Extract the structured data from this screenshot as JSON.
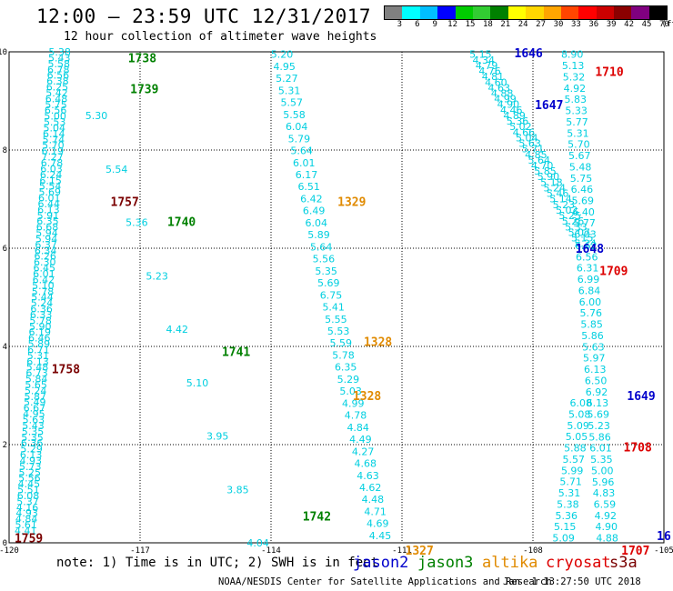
{
  "header": {
    "title": "12:00 — 23:59 UTC 12/31/2017",
    "subtitle": "12 hour collection of altimeter wave heights"
  },
  "colorbar": {
    "unit": "(ft)",
    "ticks": [
      "3",
      "6",
      "9",
      "12",
      "15",
      "18",
      "21",
      "24",
      "27",
      "30",
      "33",
      "36",
      "39",
      "42",
      "45",
      "70"
    ],
    "colors": [
      "#808080",
      "#00ffff",
      "#00bfff",
      "#0000ff",
      "#00cc00",
      "#32cd32",
      "#008000",
      "#ffff00",
      "#ffd700",
      "#ffa500",
      "#ff4500",
      "#ff0000",
      "#cc0000",
      "#8b0000",
      "#800080",
      "#000000"
    ]
  },
  "chart_data": {
    "type": "scatter",
    "xlim": [
      -120,
      -105
    ],
    "ylim": [
      0,
      10
    ],
    "x_ticks": [
      "-120",
      "-117",
      "-114",
      "-111",
      "-108",
      "-105"
    ],
    "y_ticks": [
      "0",
      "2",
      "4",
      "6",
      "8",
      "10"
    ],
    "grid": true,
    "tracks": [
      {
        "satellite": "jason3",
        "color": "#00cfe0",
        "x0": -118.84,
        "y0": 10,
        "x1": -119.62,
        "y1": 0.25,
        "values": [
          "5.38",
          "5.43",
          "5.58",
          "6.78",
          "6.56",
          "6.38",
          "6.25",
          "5.42",
          "6.48",
          "5.75",
          "6.56",
          "5.00",
          "5.53",
          "5.04",
          "6.14",
          "5.74",
          "5.70",
          "6.19",
          "7.27",
          "6.78",
          "6.03",
          "6.24",
          "6.15",
          "5.54",
          "5.69",
          "6.01",
          "6.44",
          "6.13",
          "5.91",
          "6.35",
          "6.68",
          "5.94",
          "5.94",
          "6.37",
          "6.34",
          "6.26",
          "6.30",
          "6.45",
          "6.01",
          "6.42",
          "5.10",
          "5.78",
          "5.44",
          "5.24",
          "6.36",
          "6.33",
          "5.78",
          "5.90",
          "6.19",
          "6.46",
          "5.89",
          "6.71",
          "5.31",
          "6.13",
          "5.48",
          "6.73",
          "5.84",
          "5.65",
          "5.24",
          "5.87",
          "5.49",
          "6.67",
          "4.95",
          "5.63",
          "5.43",
          "5.35",
          "5.35",
          "6.36",
          "5.29",
          "6.13",
          "4.93",
          "5.73",
          "5.25",
          "5.56",
          "4.45",
          "5.51",
          "6.08",
          "5.37",
          "4.16",
          "4.93",
          "4.84",
          "5.61",
          "4.41"
        ]
      },
      {
        "satellite": "jason3",
        "color": "#00cfe0",
        "x0": -118.0,
        "y0": 8.7,
        "x1": -114.3,
        "y1": 0.0,
        "values": [
          "5.30",
          "5.54",
          "5.36",
          "5.23",
          "4.42",
          "5.10",
          "3.95",
          "3.85",
          "4.04"
        ]
      },
      {
        "satellite": "altika",
        "color": "#00cfe0",
        "x0": -113.75,
        "y0": 9.95,
        "x1": -111.5,
        "y1": 0.15,
        "values": [
          "5.20",
          "4.95",
          "5.27",
          "5.31",
          "5.57",
          "5.58",
          "6.04",
          "5.79",
          "5.64",
          "6.01",
          "6.17",
          "6.51",
          "6.42",
          "6.49",
          "6.04",
          "5.89",
          "5.64",
          "5.56",
          "5.35",
          "5.69",
          "6.75",
          "5.41",
          "5.55",
          "5.53",
          "5.59",
          "5.78",
          "6.35",
          "5.29",
          "5.03",
          "4.99",
          "4.78",
          "4.84",
          "4.49",
          "4.27",
          "4.68",
          "4.63",
          "4.62",
          "4.48",
          "4.71",
          "4.69",
          "4.45"
        ]
      },
      {
        "satellite": "jason2",
        "color": "#00cfe0",
        "x0": -109.2,
        "y0": 9.95,
        "x1": -106.8,
        "y1": 6.1,
        "values": [
          "5.15",
          "4.34",
          "4.79",
          "4.76",
          "4.81",
          "4.60",
          "4.63",
          "4.88",
          "4.99",
          "4.90",
          "4.46",
          "4.89",
          "5.36",
          "5.02",
          "4.66",
          "5.04",
          "5.63",
          "5.71",
          "4.85",
          "5.64",
          "4.70",
          "5.85",
          "5.90",
          "5.18",
          "5.24",
          "5.46",
          "5.14",
          "5.23",
          "5.02",
          "5.25",
          "5.26",
          "5.33",
          "5.07",
          "5.15",
          "5.24"
        ]
      },
      {
        "satellite": "cryosat",
        "color": "#00cfe0",
        "x0": -107.1,
        "y0": 9.95,
        "x1": -106.3,
        "y1": 0.1,
        "values": [
          "8.90",
          "5.13",
          "5.32",
          "4.92",
          "5.83",
          "5.33",
          "5.77",
          "5.31",
          "5.70",
          "5.67",
          "5.48",
          "5.75",
          "6.46",
          "5.69",
          "6.40",
          "5.77",
          "6.03",
          "6.62",
          "6.56",
          "6.31",
          "6.99",
          "6.84",
          "6.00",
          "5.76",
          "5.85",
          "5.86",
          "5.63",
          "5.97",
          "6.13",
          "6.50",
          "6.92",
          "6.13",
          "5.69",
          "5.23",
          "5.86",
          "6.01",
          "5.35",
          "5.00",
          "5.96",
          "4.83",
          "6.59",
          "4.92",
          "4.90",
          "4.88"
        ]
      },
      {
        "satellite": "cryosat",
        "color": "#00cfe0",
        "x0": -106.9,
        "y0": 2.85,
        "x1": -107.3,
        "y1": 0.1,
        "values": [
          "6.08",
          "5.08",
          "5.09",
          "5.05",
          "5.88",
          "5.57",
          "5.99",
          "5.71",
          "5.31",
          "5.38",
          "5.36",
          "5.15",
          "5.09"
        ]
      }
    ],
    "time_labels": [
      {
        "text": "1738",
        "color": "#008000",
        "x": -116.95,
        "y": 9.88
      },
      {
        "text": "1739",
        "color": "#008000",
        "x": -116.9,
        "y": 9.25
      },
      {
        "text": "1757",
        "color": "#7a0000",
        "x": -117.35,
        "y": 6.95
      },
      {
        "text": "1740",
        "color": "#008000",
        "x": -116.05,
        "y": 6.55
      },
      {
        "text": "1758",
        "color": "#7a0000",
        "x": -118.7,
        "y": 3.55
      },
      {
        "text": "1741",
        "color": "#008000",
        "x": -114.8,
        "y": 3.9
      },
      {
        "text": "1742",
        "color": "#008000",
        "x": -112.95,
        "y": 0.55
      },
      {
        "text": "1759",
        "color": "#7a0000",
        "x": -119.55,
        "y": 0.1
      },
      {
        "text": "1329",
        "color": "#e08a00",
        "x": -112.15,
        "y": 6.95
      },
      {
        "text": "1328",
        "color": "#e08a00",
        "x": -111.55,
        "y": 4.1
      },
      {
        "text": "1328",
        "color": "#e08a00",
        "x": -111.8,
        "y": 3.0
      },
      {
        "text": "1327",
        "color": "#e08a00",
        "x": -110.6,
        "y": -0.15
      },
      {
        "text": "1646",
        "color": "#0000cc",
        "x": -108.1,
        "y": 9.98
      },
      {
        "text": "1647",
        "color": "#0000cc",
        "x": -107.63,
        "y": 8.93
      },
      {
        "text": "1710",
        "color": "#dd0000",
        "x": -106.25,
        "y": 9.6
      },
      {
        "text": "1648",
        "color": "#0000cc",
        "x": -106.7,
        "y": 6.0
      },
      {
        "text": "1709",
        "color": "#dd0000",
        "x": -106.15,
        "y": 5.55
      },
      {
        "text": "1649",
        "color": "#0000cc",
        "x": -105.52,
        "y": 3.0
      },
      {
        "text": "1708",
        "color": "#dd0000",
        "x": -105.6,
        "y": 1.95
      },
      {
        "text": "1707",
        "color": "#dd0000",
        "x": -105.65,
        "y": -0.15
      },
      {
        "text": "16",
        "color": "#0000cc",
        "x": -105.0,
        "y": 0.15
      }
    ]
  },
  "footer": {
    "note": "note: 1) Time is in UTC; 2) SWH is in feet",
    "legend": [
      {
        "label": "jason2",
        "color": "#0000cc"
      },
      {
        "label": "jason3",
        "color": "#008000"
      },
      {
        "label": "altika",
        "color": "#e08a00"
      },
      {
        "label": "cryosat",
        "color": "#dd0000"
      },
      {
        "label": "s3a",
        "color": "#7a0000"
      }
    ],
    "credit": "NOAA/NESDIS Center for Satellite Applications and Research",
    "generated": "Jan  1 13:27:50 UTC 2018"
  }
}
